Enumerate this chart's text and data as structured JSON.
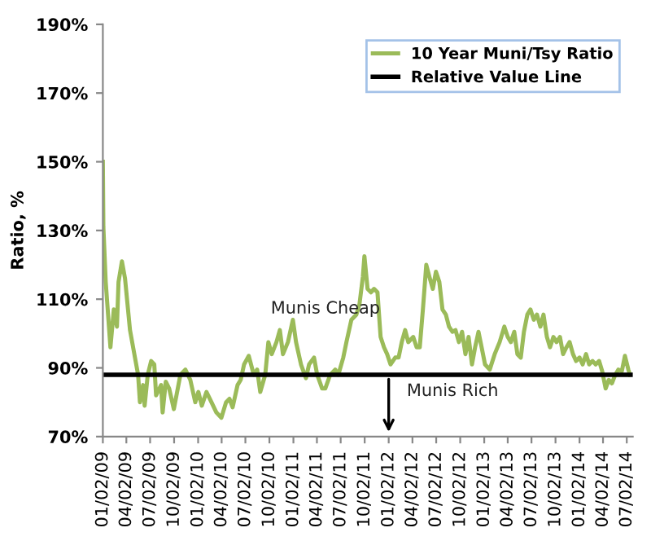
{
  "chart_data": {
    "type": "line",
    "ylabel": "Ratio, %",
    "x": [
      "2009-01-02",
      "2009-01-04",
      "2009-01-13",
      "2009-01-31",
      "2009-02-13",
      "2009-02-25",
      "2009-03-03",
      "2009-03-16",
      "2009-03-28",
      "2009-04-16",
      "2009-05-05",
      "2009-05-17",
      "2009-05-24",
      "2009-06-05",
      "2009-06-11",
      "2009-06-23",
      "2009-07-06",
      "2009-07-18",
      "2009-07-25",
      "2009-08-13",
      "2009-08-19",
      "2009-08-31",
      "2009-09-13",
      "2009-10-01",
      "2009-10-26",
      "2009-11-14",
      "2009-12-03",
      "2009-12-22",
      "2010-01-03",
      "2010-01-16",
      "2010-02-03",
      "2010-02-22",
      "2010-03-13",
      "2010-04-01",
      "2010-04-19",
      "2010-05-02",
      "2010-05-14",
      "2010-06-02",
      "2010-06-14",
      "2010-06-27",
      "2010-07-15",
      "2010-08-03",
      "2010-08-16",
      "2010-08-28",
      "2010-09-16",
      "2010-09-28",
      "2010-10-11",
      "2010-10-29",
      "2010-11-11",
      "2010-11-23",
      "2010-12-12",
      "2010-12-31",
      "2011-01-12",
      "2011-01-31",
      "2011-02-19",
      "2011-03-03",
      "2011-03-22",
      "2011-04-03",
      "2011-04-22",
      "2011-05-04",
      "2011-05-23",
      "2011-06-11",
      "2011-06-23",
      "2011-07-12",
      "2011-07-24",
      "2011-08-12",
      "2011-08-31",
      "2011-09-12",
      "2011-09-25",
      "2011-10-01",
      "2011-10-13",
      "2011-10-26",
      "2011-11-07",
      "2011-11-20",
      "2011-12-02",
      "2011-12-15",
      "2011-12-27",
      "2012-01-09",
      "2012-01-27",
      "2012-02-09",
      "2012-02-21",
      "2012-03-05",
      "2012-03-17",
      "2012-04-05",
      "2012-04-18",
      "2012-04-30",
      "2012-05-12",
      "2012-05-25",
      "2012-06-06",
      "2012-06-19",
      "2012-07-01",
      "2012-07-14",
      "2012-07-26",
      "2012-08-08",
      "2012-08-20",
      "2012-09-02",
      "2012-09-14",
      "2012-09-27",
      "2012-10-09",
      "2012-10-22",
      "2012-11-03",
      "2012-11-16",
      "2012-11-28",
      "2012-12-11",
      "2012-12-23",
      "2013-01-05",
      "2013-01-23",
      "2013-02-11",
      "2013-03-02",
      "2013-03-20",
      "2013-04-02",
      "2013-04-14",
      "2013-04-27",
      "2013-05-09",
      "2013-05-22",
      "2013-06-03",
      "2013-06-16",
      "2013-06-28",
      "2013-07-11",
      "2013-07-23",
      "2013-08-05",
      "2013-08-17",
      "2013-08-30",
      "2013-09-11",
      "2013-09-24",
      "2013-10-06",
      "2013-10-19",
      "2013-10-31",
      "2013-11-13",
      "2013-11-25",
      "2013-12-08",
      "2013-12-20",
      "2014-01-02",
      "2014-01-14",
      "2014-01-27",
      "2014-02-08",
      "2014-02-21",
      "2014-03-05",
      "2014-03-18",
      "2014-03-30",
      "2014-04-12",
      "2014-04-24",
      "2014-05-06",
      "2014-05-19",
      "2014-05-31",
      "2014-06-13",
      "2014-06-25",
      "2014-07-08",
      "2014-07-14"
    ],
    "series": [
      {
        "name": "10 Year Muni/Tsy Ratio",
        "color": "#9bbb59",
        "values": [
          150,
          131,
          115,
          96,
          107,
          102,
          115,
          121,
          116,
          101,
          93,
          88,
          80,
          85,
          79,
          88,
          92,
          91,
          82,
          85,
          77,
          86,
          84,
          78,
          88,
          89.5,
          86.5,
          80,
          83,
          79,
          83,
          80,
          77,
          75.5,
          80,
          81,
          78.5,
          85,
          86.5,
          91,
          93.5,
          88,
          89.5,
          83,
          88,
          97.5,
          94,
          97.5,
          101,
          94,
          97.5,
          104,
          97.5,
          91,
          87,
          91,
          93,
          88,
          84,
          84,
          88,
          89.5,
          88,
          93,
          97.5,
          104,
          105.5,
          108.5,
          116.5,
          122.5,
          113,
          112,
          113,
          112,
          99,
          96,
          94,
          91,
          93,
          93,
          97.5,
          101,
          97.5,
          99,
          96,
          96,
          107,
          120,
          116.5,
          113,
          118,
          115,
          107,
          105.5,
          102,
          100.5,
          101,
          97.5,
          100.5,
          94,
          99,
          91,
          96,
          100.5,
          96,
          91,
          89.5,
          94,
          97.5,
          102,
          99,
          97.5,
          100.5,
          94,
          93,
          100.5,
          105.5,
          107,
          104,
          105.5,
          102,
          105.5,
          99,
          96,
          99,
          97.5,
          99,
          94,
          96,
          97.5,
          94,
          92,
          93,
          91,
          94,
          91,
          92,
          91,
          92,
          89,
          84,
          86.5,
          85.5,
          88,
          89.5,
          89,
          93.5,
          89.5,
          88
        ]
      }
    ],
    "ref_lines": [
      {
        "axis": "y",
        "value": 88,
        "label": "Relative Value Line",
        "color": "#000000"
      }
    ],
    "annotations": [
      "Munis Cheap",
      "Munis Rich"
    ],
    "xlim": [
      "2009-01-02",
      "2014-07-25"
    ],
    "xticks": [
      {
        "value": "2009-01-02",
        "label": "01/02/09"
      },
      {
        "value": "2009-04-02",
        "label": "04/02/09"
      },
      {
        "value": "2009-07-02",
        "label": "07/02/09"
      },
      {
        "value": "2009-10-02",
        "label": "10/02/09"
      },
      {
        "value": "2010-01-02",
        "label": "01/02/10"
      },
      {
        "value": "2010-04-02",
        "label": "04/02/10"
      },
      {
        "value": "2010-07-02",
        "label": "07/02/10"
      },
      {
        "value": "2010-10-02",
        "label": "10/02/10"
      },
      {
        "value": "2011-01-02",
        "label": "01/02/11"
      },
      {
        "value": "2011-04-02",
        "label": "04/02/11"
      },
      {
        "value": "2011-07-02",
        "label": "07/02/11"
      },
      {
        "value": "2011-10-02",
        "label": "10/02/11"
      },
      {
        "value": "2012-01-02",
        "label": "01/02/12"
      },
      {
        "value": "2012-04-02",
        "label": "04/02/12"
      },
      {
        "value": "2012-07-02",
        "label": "07/02/12"
      },
      {
        "value": "2012-10-02",
        "label": "10/02/12"
      },
      {
        "value": "2013-01-02",
        "label": "01/02/13"
      },
      {
        "value": "2013-04-02",
        "label": "04/02/13"
      },
      {
        "value": "2013-07-02",
        "label": "07/02/13"
      },
      {
        "value": "2013-10-02",
        "label": "10/02/13"
      },
      {
        "value": "2014-01-02",
        "label": "01/02/14"
      },
      {
        "value": "2014-04-02",
        "label": "04/02/14"
      },
      {
        "value": "2014-07-02",
        "label": "07/02/14"
      }
    ],
    "ylim": [
      70,
      190
    ],
    "yticks": [
      {
        "value": 70,
        "label": "70%"
      },
      {
        "value": 90,
        "label": "90%"
      },
      {
        "value": 110,
        "label": "110%"
      },
      {
        "value": 130,
        "label": "130%"
      },
      {
        "value": 150,
        "label": "150%"
      },
      {
        "value": 170,
        "label": "170%"
      },
      {
        "value": 190,
        "label": "190%"
      }
    ],
    "legend": "top right",
    "grid": false,
    "marker": "none",
    "line_style": "solid"
  }
}
